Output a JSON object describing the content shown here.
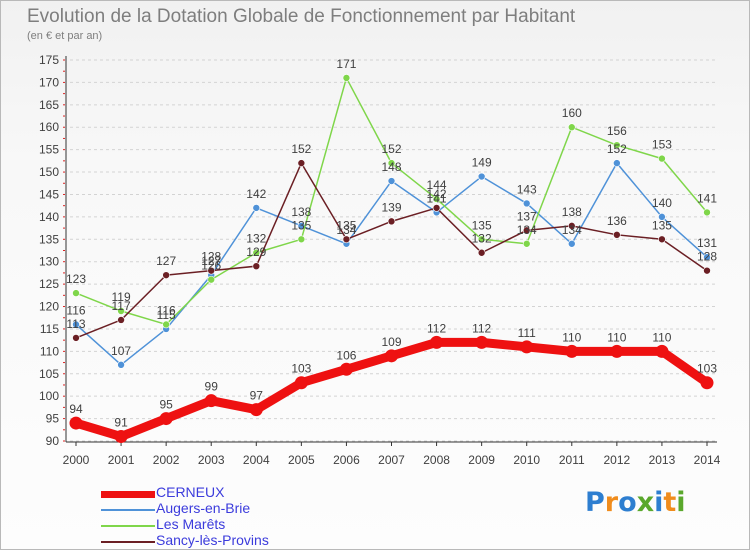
{
  "header": {
    "title": "Evolution de la Dotation Globale de Fonctionnement par Habitant",
    "subtitle": "(en € et par an)"
  },
  "logo": {
    "text": "Proxiti",
    "letter_colors": [
      "#2d7ed0",
      "#f08c1c",
      "#2d7ed0",
      "#5aa82c",
      "#2d7ed0",
      "#f08c1c",
      "#5aa82c"
    ]
  },
  "chart_data": {
    "type": "line",
    "title": "Evolution de la Dotation Globale de Fonctionnement par Habitant",
    "subtitle": "(en € et par an)",
    "xlabel": "",
    "ylabel": "",
    "x": [
      "2000",
      "2001",
      "2002",
      "2003",
      "2004",
      "2005",
      "2006",
      "2007",
      "2008",
      "2009",
      "2010",
      "2011",
      "2012",
      "2013",
      "2014"
    ],
    "ylim": [
      90,
      175
    ],
    "yticks": [
      90,
      95,
      100,
      105,
      110,
      115,
      120,
      125,
      130,
      135,
      140,
      145,
      150,
      155,
      160,
      165,
      170,
      175
    ],
    "grid": "horizontal dashed",
    "legend_position": "bottom-left",
    "series": [
      {
        "name": "Augers-en-Brie",
        "color": "#4f92d8",
        "values": [
          116,
          107,
          115,
          127,
          142,
          138,
          134,
          148,
          141,
          149,
          143,
          134,
          152,
          140,
          131
        ],
        "labels": [
          "116",
          "107",
          "115",
          "127",
          "142",
          "138",
          "134",
          "148",
          "141",
          "149",
          "143",
          "134",
          "152",
          "140",
          "131"
        ]
      },
      {
        "name": "Les Marêts",
        "color": "#7fd64a",
        "values": [
          123,
          119,
          116,
          126,
          132,
          135,
          171,
          152,
          144,
          135,
          134,
          160,
          156,
          153,
          141
        ],
        "labels": [
          "123",
          "119",
          "116",
          "126",
          "132",
          "135",
          "171",
          "152",
          "144",
          "135",
          "134",
          "160",
          "156",
          "153",
          "141"
        ]
      },
      {
        "name": "Sancy-lès-Provins",
        "color": "#6b1f24",
        "values": [
          113,
          117,
          127,
          128,
          129,
          152,
          135,
          139,
          142,
          132,
          137,
          138,
          136,
          135,
          128
        ],
        "labels": [
          "113",
          "117",
          "127",
          "128",
          "129",
          "152",
          "135",
          "139",
          "142",
          "132",
          "137",
          "138",
          "136",
          "135",
          "128"
        ]
      },
      {
        "name": "CERNEUX",
        "color": "#ee1111",
        "values": [
          94,
          91,
          95,
          99,
          97,
          103,
          106,
          109,
          112,
          112,
          111,
          110,
          110,
          110,
          103
        ],
        "labels": [
          "94",
          "91",
          "95",
          "99",
          "97",
          "103",
          "106",
          "109",
          "112",
          "112",
          "111",
          "110",
          "110",
          "110",
          "103"
        ]
      }
    ]
  },
  "legend": {
    "items": [
      {
        "name": "CERNEUX",
        "color": "#ee1111",
        "thick": true
      },
      {
        "name": "Augers-en-Brie",
        "color": "#4f92d8",
        "thick": false
      },
      {
        "name": "Les Marêts",
        "color": "#7fd64a",
        "thick": false
      },
      {
        "name": "Sancy-lès-Provins",
        "color": "#6b1f24",
        "thick": false
      }
    ]
  }
}
